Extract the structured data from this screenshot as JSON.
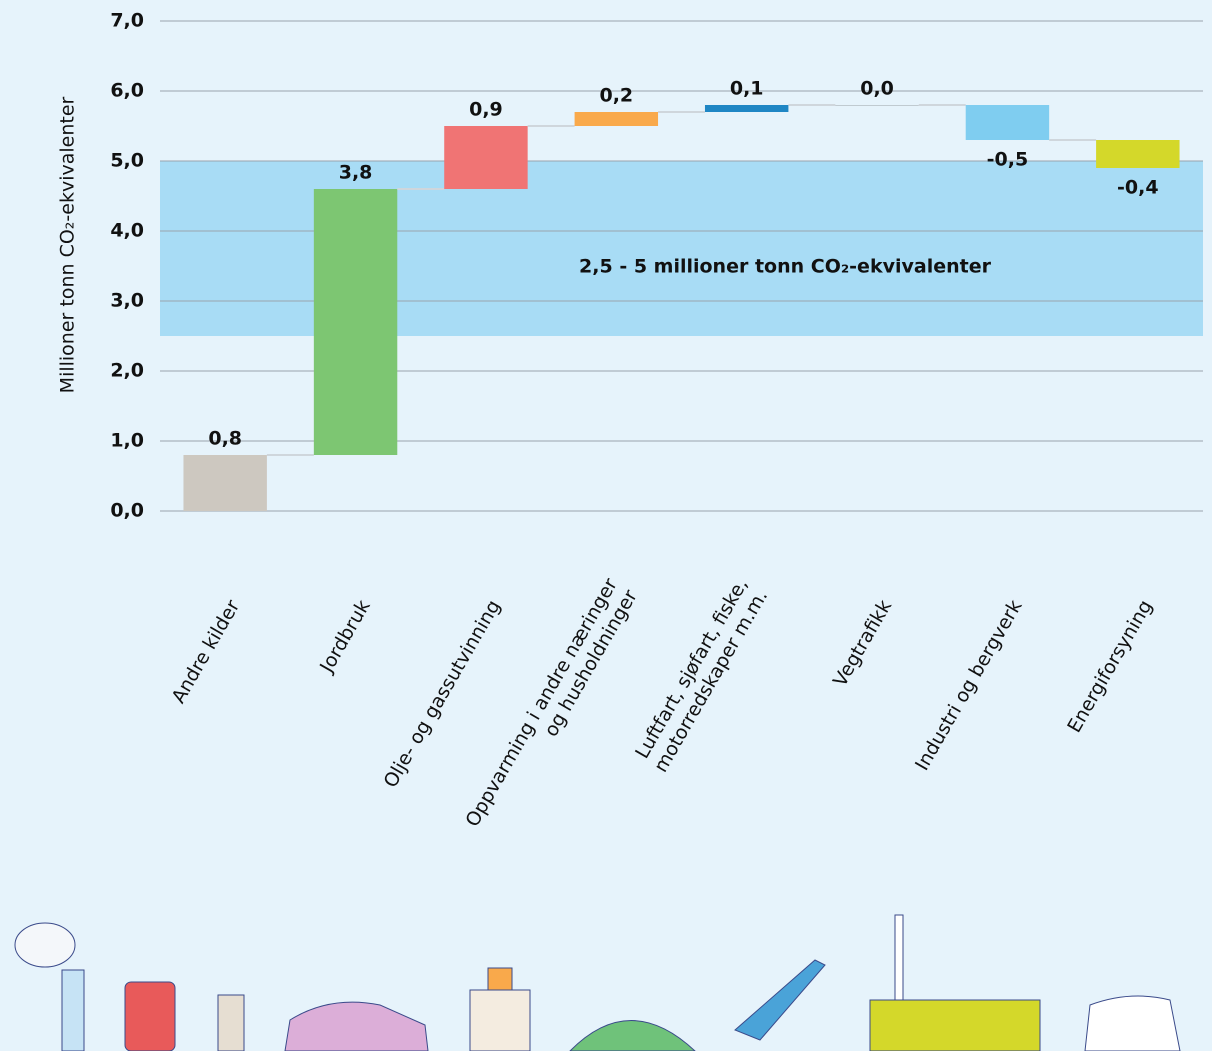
{
  "chart_data": {
    "type": "waterfall",
    "y_label": "Millioner tonn CO₂-ekvivalenter",
    "categories": [
      "Andre kilder",
      "Jordbruk",
      "Olje- og gassutvinning",
      "Oppvarming i andre næringer\nog husholdninger",
      "Luftfart, sjøfart, fiske,\nmotorredskaper m.m.",
      "Vegtrafikk",
      "Industri og bergverk",
      "Energiforsyning"
    ],
    "values": [
      0.8,
      3.8,
      0.9,
      0.2,
      0.1,
      0.0,
      -0.5,
      -0.4
    ],
    "value_labels": [
      "0,8",
      "3,8",
      "0,9",
      "0,2",
      "0,1",
      "0,0",
      "-0,5",
      "-0,4"
    ],
    "colors": [
      "#cdc8c0",
      "#7dc672",
      "#f07474",
      "#f9a94b",
      "#1f86c4",
      "#9aa0a6",
      "#7fcdf0",
      "#d4d82a"
    ],
    "ylim": [
      0,
      7
    ],
    "yticks": [
      {
        "value": 0,
        "label": "0,0"
      },
      {
        "value": 1,
        "label": "1,0"
      },
      {
        "value": 2,
        "label": "2,0"
      },
      {
        "value": 3,
        "label": "3,0"
      },
      {
        "value": 4,
        "label": "4,0"
      },
      {
        "value": 5,
        "label": "5,0"
      },
      {
        "value": 6,
        "label": "6,0"
      },
      {
        "value": 7,
        "label": "7,0"
      }
    ],
    "grid": true,
    "band": {
      "range": [
        2.5,
        5
      ],
      "color": "#a8dcf5",
      "label": "2,5 - 5 millioner tonn CO₂-ekvivalenter"
    }
  }
}
